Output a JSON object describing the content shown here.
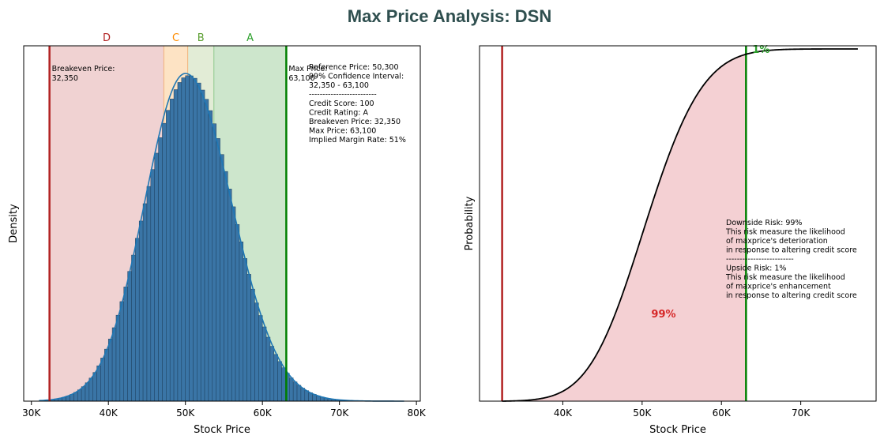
{
  "title": "Max Price Analysis: DSN",
  "chart_data": [
    {
      "type": "bar",
      "subtype": "histogram-with-kde",
      "xlabel": "Stock Price",
      "ylabel": "Density",
      "xlim": [
        29000,
        80500
      ],
      "x_ticks": [
        30000,
        40000,
        50000,
        60000,
        70000,
        80000
      ],
      "x_tick_labels": [
        "30K",
        "40K",
        "50K",
        "60K",
        "70K",
        "80K"
      ],
      "y_ticks_shown": false,
      "distribution": {
        "mean": 50000,
        "sd_left": 5300,
        "sd_right": 6000,
        "min": 31000,
        "max": 78500,
        "bin_width": 500
      },
      "zones": [
        {
          "label": "D",
          "from": 32350,
          "to": 47200,
          "color": "#f0d2d2",
          "label_color": "#b22222"
        },
        {
          "label": "C",
          "from": 47200,
          "to": 50300,
          "color": "#fde3c4",
          "label_color": "#ff8c00"
        },
        {
          "label": "B",
          "from": 50300,
          "to": 53700,
          "color": "#e2ecd6",
          "label_color": "#5a9e2f"
        },
        {
          "label": "A",
          "from": 53700,
          "to": 63100,
          "color": "#cde6cc",
          "label_color": "#2ca02c"
        }
      ],
      "lines": [
        {
          "name": "breakeven",
          "x": 32350,
          "color": "#b22222",
          "label": [
            "Breakeven Price:",
            "32,350"
          ]
        },
        {
          "name": "max",
          "x": 63100,
          "color": "#008000",
          "label": [
            "Max Price:",
            "63,100"
          ]
        }
      ],
      "annotation": [
        "Reference Price: 50,300",
        "99% Confidence Interval:",
        "32,350 - 63,100",
        "-------------------------",
        "Credit Score: 100",
        "Credit Rating: A",
        "Breakeven Price: 32,350",
        "Max Price: 63,100",
        "Implied Margin Rate: 51%"
      ],
      "bar_color": "#3a75a6",
      "kde_color": "#1f77b4"
    },
    {
      "type": "line",
      "subtype": "cdf",
      "xlabel": "Stock Price",
      "ylabel": "Probability",
      "xlim": [
        29500,
        79500
      ],
      "x_ticks": [
        40000,
        50000,
        60000,
        70000
      ],
      "x_tick_labels": [
        "40K",
        "50K",
        "60K",
        "70K"
      ],
      "y_ticks_shown": false,
      "lines": [
        {
          "name": "breakeven",
          "x": 32350,
          "color": "#b22222"
        },
        {
          "name": "max",
          "x": 63100,
          "color": "#008000"
        }
      ],
      "fill": {
        "from": 32350,
        "to": 63100,
        "color": "#f4d0d3"
      },
      "downside_label": {
        "text": "99%",
        "color": "#d62728"
      },
      "upside_label": {
        "text": "1%",
        "color": "#2ca02c"
      },
      "annotation": [
        "Downside Risk: 99%",
        "This risk measure the likelihood",
        "of maxprice's deterioration",
        "in response to altering credit score",
        "-------------------------",
        "Upside Risk: 1%",
        "This risk measure the likelihood",
        "of maxprice's enhancement",
        "in response to altering credit score"
      ],
      "curve_color": "#000000"
    }
  ]
}
